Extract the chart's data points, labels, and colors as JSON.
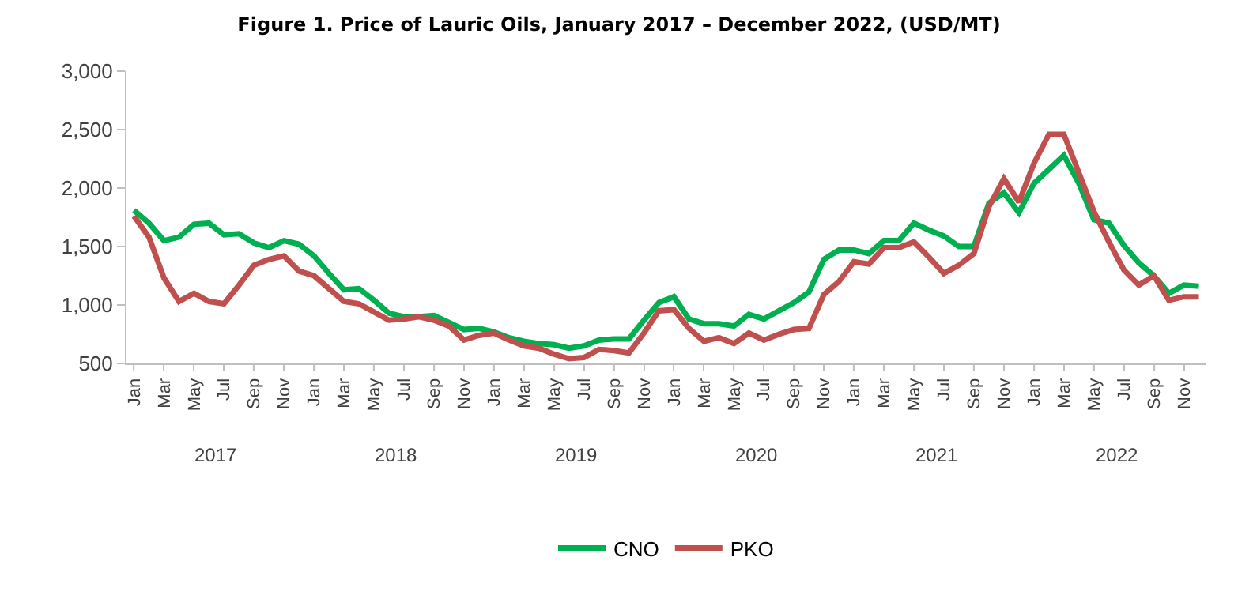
{
  "chart_data": {
    "type": "line",
    "title": "Figure 1. Price of Lauric Oils, January 2017 – December 2022, (USD/MT)",
    "categories": [
      "Jan",
      null,
      "Mar",
      null,
      "May",
      null,
      "Jul",
      null,
      "Sep",
      null,
      "Nov",
      null,
      "Jan",
      null,
      "Mar",
      null,
      "May",
      null,
      "Jul",
      null,
      "Sep",
      null,
      "Nov",
      null,
      "Jan",
      null,
      "Mar",
      null,
      "May",
      null,
      "Jul",
      null,
      "Sep",
      null,
      "Nov",
      null,
      "Jan",
      null,
      "Mar",
      null,
      "May",
      null,
      "Jul",
      null,
      "Sep",
      null,
      "Nov",
      null,
      "Jan",
      null,
      "Mar",
      null,
      "May",
      null,
      "Jul",
      null,
      "Sep",
      null,
      "Nov",
      null,
      "Jan",
      null,
      "Mar",
      null,
      "May",
      null,
      "Jul",
      null,
      "Sep",
      null,
      "Nov",
      null
    ],
    "series": [
      {
        "name": "CNO",
        "color": "#00b050",
        "values": [
          1810,
          1700,
          1550,
          1580,
          1690,
          1700,
          1600,
          1610,
          1530,
          1490,
          1550,
          1520,
          1420,
          1270,
          1130,
          1140,
          1040,
          930,
          900,
          900,
          910,
          850,
          790,
          800,
          770,
          720,
          690,
          670,
          660,
          630,
          650,
          700,
          710,
          710,
          870,
          1020,
          1070,
          880,
          840,
          840,
          820,
          920,
          880,
          950,
          1020,
          1110,
          1390,
          1470,
          1470,
          1440,
          1550,
          1550,
          1700,
          1640,
          1590,
          1500,
          1500,
          1870,
          1960,
          1790,
          2040,
          2160,
          2280,
          2040,
          1730,
          1700,
          1510,
          1360,
          1250,
          1100,
          1170,
          1160
        ]
      },
      {
        "name": "PKO",
        "color": "#c0504d",
        "values": [
          1760,
          1580,
          1230,
          1030,
          1100,
          1030,
          1010,
          1170,
          1340,
          1390,
          1420,
          1290,
          1250,
          1140,
          1030,
          1010,
          940,
          870,
          880,
          900,
          870,
          820,
          700,
          740,
          760,
          700,
          650,
          630,
          580,
          540,
          550,
          620,
          610,
          590,
          760,
          950,
          960,
          800,
          690,
          720,
          670,
          760,
          700,
          750,
          790,
          800,
          1090,
          1200,
          1370,
          1350,
          1490,
          1490,
          1540,
          1410,
          1270,
          1340,
          1440,
          1840,
          2080,
          1880,
          2210,
          2460,
          2460,
          2130,
          1800,
          1540,
          1300,
          1170,
          1250,
          1040,
          1070,
          1070
        ]
      }
    ],
    "ylim": [
      500,
      3000
    ],
    "yticks": [
      {
        "value": 500,
        "label": "500"
      },
      {
        "value": 1000,
        "label": "1,000"
      },
      {
        "value": 1500,
        "label": "1,500"
      },
      {
        "value": 2000,
        "label": "2,000"
      },
      {
        "value": 2500,
        "label": "2,500"
      },
      {
        "value": 3000,
        "label": "3,000"
      }
    ],
    "annotations": [
      "2017",
      "2018",
      "2019",
      "2020",
      "2021",
      "2022"
    ],
    "legend": "bottom",
    "marker": "none",
    "line_style": "solid"
  }
}
